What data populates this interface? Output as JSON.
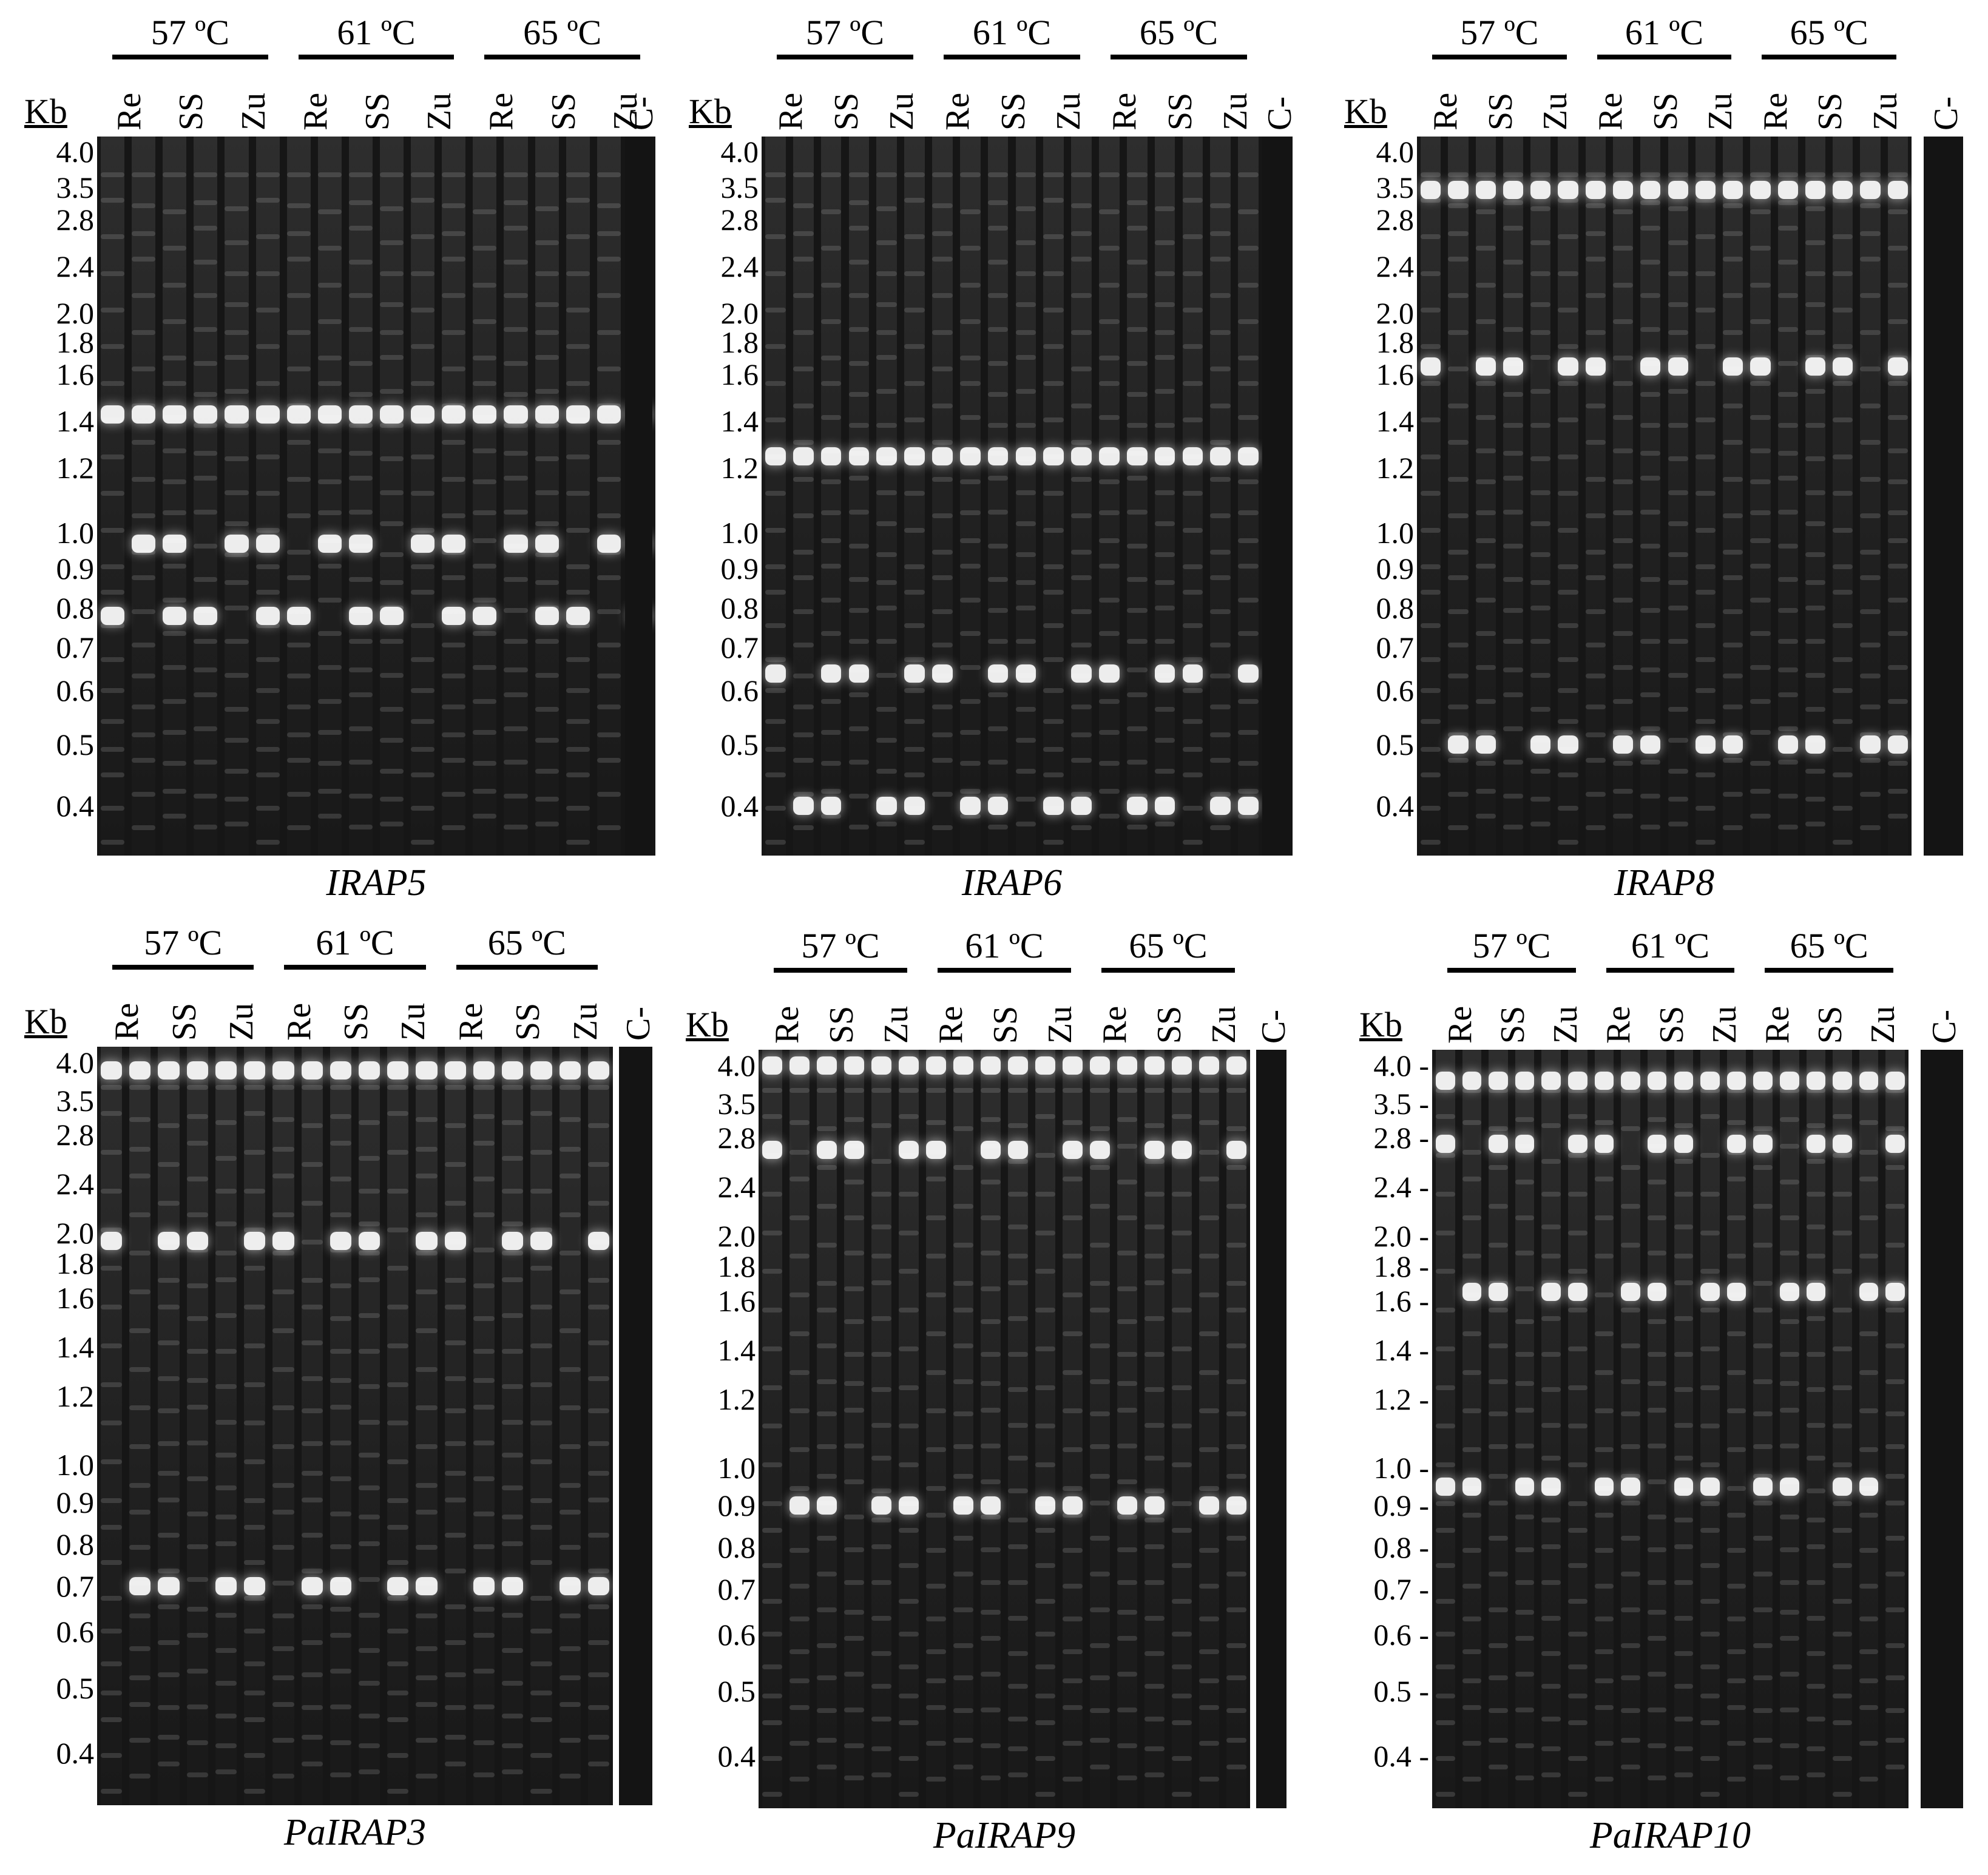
{
  "common": {
    "unit_label": "Kb",
    "control_label": "C-",
    "temperatures": [
      "57 ºC",
      "61 ºC",
      "65 ºC"
    ],
    "lane_groups": [
      "Re",
      "SS",
      "Zu"
    ]
  },
  "panels": [
    {
      "name": "IRAP5",
      "markers": [
        "4.0",
        "3.5",
        "2.8",
        "2.4",
        "2.0",
        "1.8",
        "1.6",
        "1.4",
        "1.2",
        "1.0",
        "0.9",
        "0.8",
        "0.7",
        "0.6",
        "0.5",
        "0.4"
      ],
      "strong_bands_kb": [
        1.43,
        0.78,
        0.97
      ]
    },
    {
      "name": "IRAP6",
      "markers": [
        "4.0",
        "3.5",
        "2.8",
        "2.4",
        "2.0",
        "1.8",
        "1.6",
        "1.4",
        "1.2",
        "1.0",
        "0.9",
        "0.8",
        "0.7",
        "0.6",
        "0.5",
        "0.4"
      ],
      "strong_bands_kb": [
        1.25,
        0.64,
        0.4
      ]
    },
    {
      "name": "IRAP8",
      "markers": [
        "4.0",
        "3.5",
        "2.8",
        "2.4",
        "2.0",
        "1.8",
        "1.6",
        "1.4",
        "1.2",
        "1.0",
        "0.9",
        "0.8",
        "0.7",
        "0.6",
        "0.5",
        "0.4"
      ],
      "strong_bands_kb": [
        3.45,
        1.65,
        0.5
      ]
    },
    {
      "name": "PaIRAP3",
      "markers": [
        "4.0",
        "3.5",
        "2.8",
        "2.4",
        "2.0",
        "1.8",
        "1.6",
        "1.4",
        "1.2",
        "1.0",
        "0.9",
        "0.8",
        "0.7",
        "0.6",
        "0.5",
        "0.4"
      ],
      "strong_bands_kb": [
        3.9,
        1.95,
        0.7
      ]
    },
    {
      "name": "PaIRAP9",
      "markers": [
        "4.0",
        "3.5",
        "2.8",
        "2.4",
        "2.0",
        "1.8",
        "1.6",
        "1.4",
        "1.2",
        "1.0",
        "0.9",
        "0.8",
        "0.7",
        "0.6",
        "0.5",
        "0.4"
      ],
      "strong_bands_kb": [
        4.0,
        2.7,
        0.9
      ]
    },
    {
      "name": "PaIRAP10",
      "markers": [
        "4.0 -",
        "3.5 -",
        "2.8 -",
        "2.4 -",
        "2.0 -",
        "1.8 -",
        "1.6 -",
        "1.4 -",
        "1.2 -",
        "1.0 -",
        "0.9 -",
        "0.8 -",
        "0.7 -",
        "0.6 -",
        "0.5 -",
        "0.4 -"
      ],
      "strong_bands_kb": [
        3.8,
        2.75,
        1.65,
        0.95
      ]
    }
  ]
}
